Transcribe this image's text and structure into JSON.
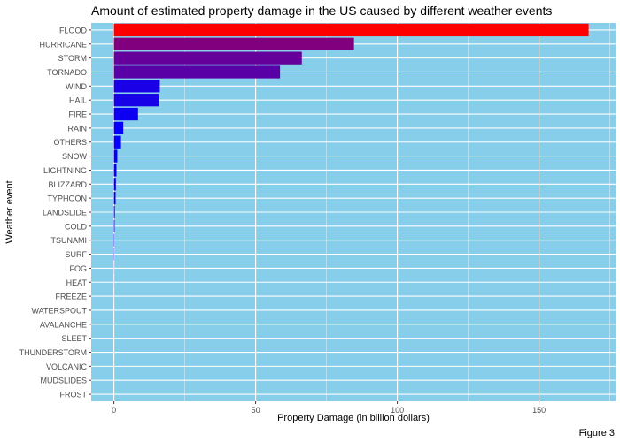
{
  "chart_data": {
    "type": "bar",
    "orientation": "horizontal",
    "title": "Amount of estimated property damage in the US caused by different weather events",
    "xlabel": "Property Damage (in billion dollars)",
    "ylabel": "Weather event",
    "caption": "Figure 3",
    "xlim": [
      -8,
      177
    ],
    "xticks": [
      0,
      50,
      100,
      150
    ],
    "grid": true,
    "panel_background": "#87CEEB",
    "categories": [
      "FLOOD",
      "HURRICANE",
      "STORM",
      "TORNADO",
      "WIND",
      "HAIL",
      "FIRE",
      "RAIN",
      "OTHERS",
      "SNOW",
      "LIGHTNING",
      "BLIZZARD",
      "TYPHOON",
      "LANDSLIDE",
      "COLD",
      "TSUNAMI",
      "SURF",
      "FOG",
      "HEAT",
      "FREEZE",
      "WATERSPOUT",
      "AVALANCHE",
      "SLEET",
      "THUNDERSTORM",
      "VOLCANIC",
      "MUDSLIDES",
      "FROST"
    ],
    "values": [
      167.5,
      84.7,
      66.3,
      58.6,
      16.2,
      15.9,
      8.5,
      3.3,
      2.5,
      1.2,
      0.9,
      0.7,
      0.6,
      0.33,
      0.25,
      0.14,
      0.1,
      0.03,
      0.02,
      0.01,
      0.006,
      0.004,
      0.002,
      0.0015,
      0.0005,
      0.0001,
      0.0001
    ],
    "color_scale": {
      "low": "#0000FF",
      "high": "#FF0000"
    }
  }
}
